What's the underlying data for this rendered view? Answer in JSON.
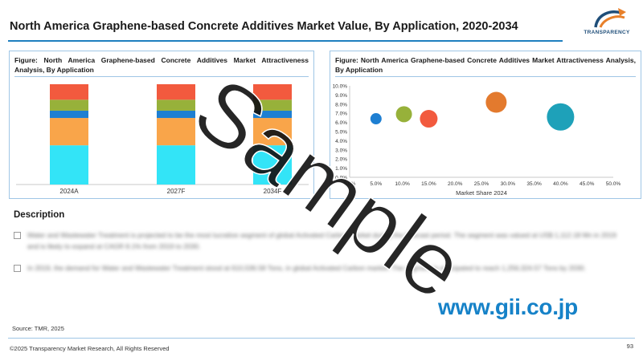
{
  "header": {
    "title": "North America Graphene-based Concrete Additives Market Value, By Application, 2020-2034",
    "logo_text": "TRANSPARENCY"
  },
  "left_panel": {
    "caption": "Figure: North America Graphene-based Concrete Additives Market Attractiveness Analysis, By Application"
  },
  "right_panel": {
    "caption": "Figure: North America Graphene-based Concrete Additives Market Attractiveness Analysis, By Application"
  },
  "description": {
    "heading": "Description",
    "items": [
      "Water and Wastewater Treatment is projected to be the most lucrative segment of global Activated Carbon market during the forecast period. The segment was valued at US$ 1,112.18 Mn in 2019 and is likely to expand at CAGR 8.1% from 2019 to 2030.",
      "In 2019, the demand for Water and Wastewater Treatment stood at 610,536.58 Tons, in global Activated Carbon market. The segment is anticipated to reach 1,256,324.57 Tons by 2030."
    ]
  },
  "source": "Source: TMR, 2025",
  "footer": {
    "copyright": "©2025 Transparency Market Research, All Rights Reserved",
    "page_number": "93"
  },
  "watermarks": {
    "url": "www.gii.co.jp",
    "sample": "Sample"
  },
  "colors": {
    "accent": "#1f7fbf",
    "panel_border": "#9fc6e6",
    "url_blue": "#1682c8",
    "cyan": "#33e4f7",
    "orange": "#f9a54a",
    "blue": "#1e7fd2",
    "olive": "#97b13a",
    "red": "#f25a3e",
    "bubble_orange": "#e37a2e",
    "bubble_teal": "#1ea1b9"
  },
  "chart_data": [
    {
      "type": "bar",
      "stacked": true,
      "categories": [
        "2024A",
        "2027F",
        "2034F"
      ],
      "series": [
        {
          "color": "#33e4f7",
          "values": [
            43,
            43,
            43
          ]
        },
        {
          "color": "#f9a54a",
          "values": [
            30,
            30,
            30
          ]
        },
        {
          "color": "#1e7fd2",
          "values": [
            8,
            8,
            8
          ]
        },
        {
          "color": "#97b13a",
          "values": [
            12,
            12,
            12
          ]
        },
        {
          "color": "#f25a3e",
          "values": [
            17,
            17,
            17
          ]
        }
      ],
      "ylim": [
        0,
        110
      ],
      "grid": false,
      "legend": "none"
    },
    {
      "type": "scatter",
      "xlabel": "Market Share 2024",
      "xlim": [
        0,
        50
      ],
      "ylim": [
        0,
        10
      ],
      "x_ticks": [
        "0.0%",
        "5.0%",
        "10.0%",
        "15.0%",
        "20.0%",
        "25.0%",
        "30.0%",
        "35.0%",
        "40.0%",
        "45.0%",
        "50.0%"
      ],
      "y_ticks": [
        "0.0%",
        "1.0%",
        "2.0%",
        "3.0%",
        "4.0%",
        "5.0%",
        "6.0%",
        "7.0%",
        "8.0%",
        "9.0%",
        "10.0%"
      ],
      "points": [
        {
          "x": 5.0,
          "y": 6.4,
          "size": 7,
          "color": "#1e7fd2"
        },
        {
          "x": 10.3,
          "y": 6.9,
          "size": 10,
          "color": "#97b13a"
        },
        {
          "x": 15.0,
          "y": 6.4,
          "size": 11,
          "color": "#f25a3e"
        },
        {
          "x": 27.8,
          "y": 8.2,
          "size": 13,
          "color": "#e37a2e"
        },
        {
          "x": 40.0,
          "y": 6.6,
          "size": 17,
          "color": "#1ea1b9"
        }
      ],
      "grid": false,
      "legend": "none"
    }
  ]
}
